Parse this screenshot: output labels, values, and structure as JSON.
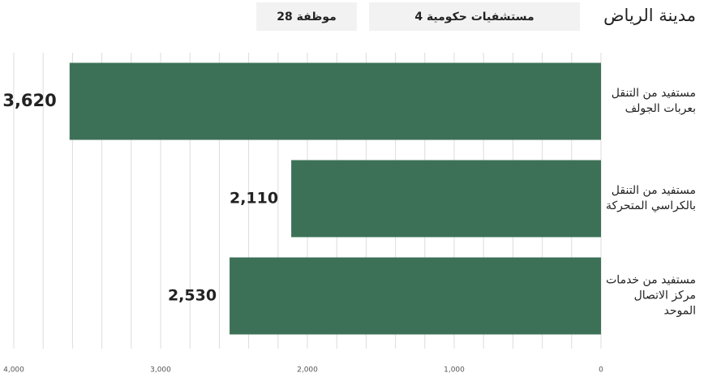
{
  "chart_data": {
    "type": "bar",
    "orientation": "horizontal",
    "title": "مدينة الرياض",
    "badges": [
      "4 مستشفيات حكومية",
      "28 موظفة"
    ],
    "categories": [
      "مستفيد من التنقل بعربات الجولف",
      "مستفيد من التنقل بالكراسي المتحركة",
      "مستفيد من خدمات مركز الاتصال الموحد"
    ],
    "values": [
      3620,
      2110,
      2530
    ],
    "value_labels": [
      "3,620",
      "2,110",
      "2,530"
    ],
    "color": "#3d7157",
    "xlim": [
      4000,
      0
    ],
    "xticks": [
      {
        "value": 4000,
        "label": "4,000"
      },
      {
        "value": 3000,
        "label": "3,000"
      },
      {
        "value": 2000,
        "label": "2,000"
      },
      {
        "value": 1000,
        "label": "1,000"
      },
      0
    ],
    "minor_xticks": [
      3800,
      3600,
      3400,
      3200,
      2800,
      2600,
      2400,
      2200,
      1800,
      1600,
      1400,
      1200,
      800,
      600,
      400,
      200
    ],
    "grid": true
  }
}
